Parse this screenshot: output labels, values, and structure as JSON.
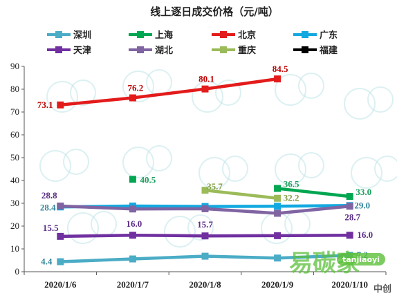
{
  "chart_data": {
    "type": "line",
    "title": "线上逐日成交价格（元/吨）",
    "categories": [
      "2020/1/6",
      "2020/1/7",
      "2020/1/8",
      "2020/1/9",
      "2020/1/10"
    ],
    "ylim": [
      0,
      90
    ],
    "yticks": [
      0,
      10,
      20,
      30,
      40,
      50,
      60,
      70,
      80,
      90
    ],
    "grid": false,
    "legend_position": "top",
    "series": [
      {
        "name": "深圳",
        "color": "#4bacc6",
        "values": [
          4.4,
          5.6,
          6.8,
          6.0,
          7.2
        ],
        "labels": [
          "4.4",
          "",
          "",
          "",
          "7.2"
        ]
      },
      {
        "name": "上海",
        "color": "#00a650",
        "values": [
          null,
          40.5,
          null,
          36.5,
          33.0
        ],
        "labels": [
          "",
          "40.5",
          "",
          "36.5",
          "33.0"
        ]
      },
      {
        "name": "北京",
        "color": "#e31b1b",
        "values": [
          73.1,
          76.2,
          80.1,
          84.5,
          null
        ],
        "labels": [
          "73.1",
          "76.2",
          "80.1",
          "84.5",
          ""
        ]
      },
      {
        "name": "广东",
        "color": "#12a9e0",
        "values": [
          28.4,
          28.8,
          28.6,
          28.7,
          29.0
        ],
        "labels": [
          "28.4",
          "",
          "",
          "",
          "29.0"
        ]
      },
      {
        "name": "天津",
        "color": "#7030a0",
        "values": [
          15.5,
          16.0,
          15.7,
          15.8,
          16.0
        ],
        "labels": [
          "15.5",
          "16.0",
          "15.7",
          "",
          "16.0"
        ]
      },
      {
        "name": "湖北",
        "color": "#8064a2",
        "values": [
          28.8,
          27.5,
          27.6,
          25.6,
          28.7
        ],
        "labels": [
          "28.8",
          "",
          "",
          "",
          "28.7"
        ]
      },
      {
        "name": "重庆",
        "color": "#9bbb59",
        "values": [
          null,
          null,
          35.7,
          32.2,
          null
        ],
        "labels": [
          "",
          "",
          "35.7",
          "32.2",
          ""
        ]
      },
      {
        "name": "福建",
        "color": "#000000",
        "values": [
          null,
          null,
          null,
          null,
          null
        ],
        "labels": [
          "",
          "",
          "",
          "",
          ""
        ]
      }
    ]
  },
  "watermark": {
    "brand": "易碳家",
    "site": "tanjiaoyi",
    "source": "中创"
  }
}
